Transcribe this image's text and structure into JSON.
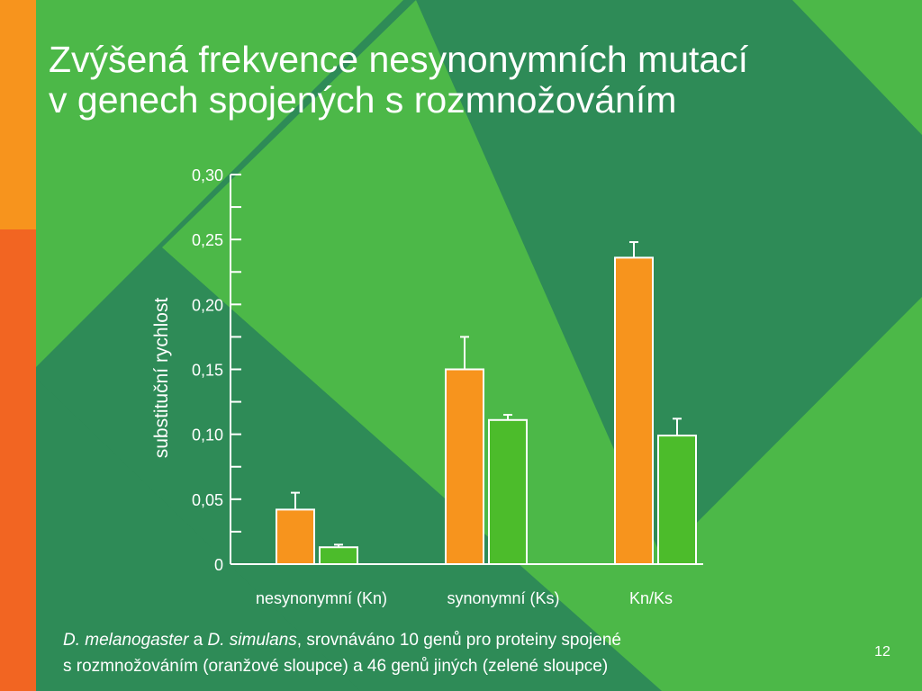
{
  "slide": {
    "title_line1": "Zvýšená frekvence nesynonymních mutací",
    "title_line2": "v genech spojených s rozmnožováním",
    "caption": {
      "species1": "D. melanogaster",
      "connector": " a ",
      "species2": "D. simulans",
      "rest_line1": ", srovnáváno 10 genů pro proteiny spojené",
      "line2": "s rozmnožováním (oranžové sloupce) a 46 genů jiných (zelené sloupce)"
    },
    "page_number": "12"
  },
  "colors": {
    "background_dark": "#2e8b57",
    "background_light": "#4cb848",
    "left_bar_top": "#f7941d",
    "left_bar_bottom": "#f26522",
    "orange_bars": "#f7941d",
    "green_bars": "#4cbc2b",
    "text": "#ffffff"
  },
  "chart_data": {
    "type": "bar",
    "title": "",
    "xlabel": "",
    "ylabel": "substituční rychlost",
    "categories": [
      "nesynonymní (Kn)",
      "synonymní (Ks)",
      "Kn/Ks"
    ],
    "ylim": [
      0,
      0.3
    ],
    "yticks": [
      0,
      0.05,
      0.1,
      0.15,
      0.2,
      0.25,
      0.3
    ],
    "ytick_labels": [
      "0",
      "0,05",
      "0,10",
      "0,15",
      "0,20",
      "0,25",
      "0,30"
    ],
    "series": [
      {
        "color": "#f7941d",
        "values": [
          0.042,
          0.15,
          0.236
        ],
        "errors": [
          0.013,
          0.025,
          0.012
        ]
      },
      {
        "color": "#4cbc2b",
        "values": [
          0.013,
          0.111,
          0.099
        ],
        "errors": [
          0.002,
          0.004,
          0.013
        ]
      }
    ],
    "grid": false,
    "legend": "none"
  }
}
